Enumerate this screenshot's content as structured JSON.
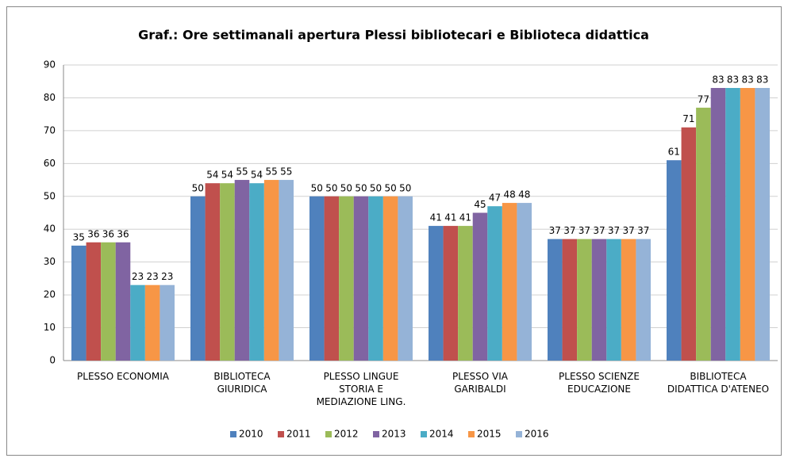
{
  "chart_data": {
    "type": "bar",
    "title": "Graf.: Ore settimanali apertura Plessi bibliotecari e Biblioteca didattica",
    "categories": [
      "PLESSO ECONOMIA",
      "BIBLIOTECA\nGIURIDICA",
      "PLESSO LINGUE\nSTORIA E\nMEDIAZIONE LING.",
      "PLESSO VIA\nGARIBALDI",
      "PLESSO SCIENZE\nEDUCAZIONE",
      "BIBLIOTECA\nDIDATTICA D'ATENEO"
    ],
    "series": [
      {
        "name": "2010",
        "color": "#4f81bd",
        "values": [
          35,
          50,
          50,
          41,
          37,
          61
        ]
      },
      {
        "name": "2011",
        "color": "#c0504d",
        "values": [
          36,
          54,
          50,
          41,
          37,
          71
        ]
      },
      {
        "name": "2012",
        "color": "#9bbb59",
        "values": [
          36,
          54,
          50,
          41,
          37,
          77
        ]
      },
      {
        "name": "2013",
        "color": "#8064a2",
        "values": [
          36,
          55,
          50,
          45,
          37,
          83
        ]
      },
      {
        "name": "2014",
        "color": "#4bacc6",
        "values": [
          23,
          54,
          50,
          47,
          37,
          83
        ]
      },
      {
        "name": "2015",
        "color": "#f79646",
        "values": [
          23,
          55,
          50,
          48,
          37,
          83
        ]
      },
      {
        "name": "2016",
        "color": "#95b3d7",
        "values": [
          23,
          55,
          50,
          48,
          37,
          83
        ]
      }
    ],
    "ylim": [
      0,
      90
    ],
    "yticks": [
      0,
      10,
      20,
      30,
      40,
      50,
      60,
      70,
      80,
      90
    ],
    "grid": true,
    "legend": "bottom"
  }
}
